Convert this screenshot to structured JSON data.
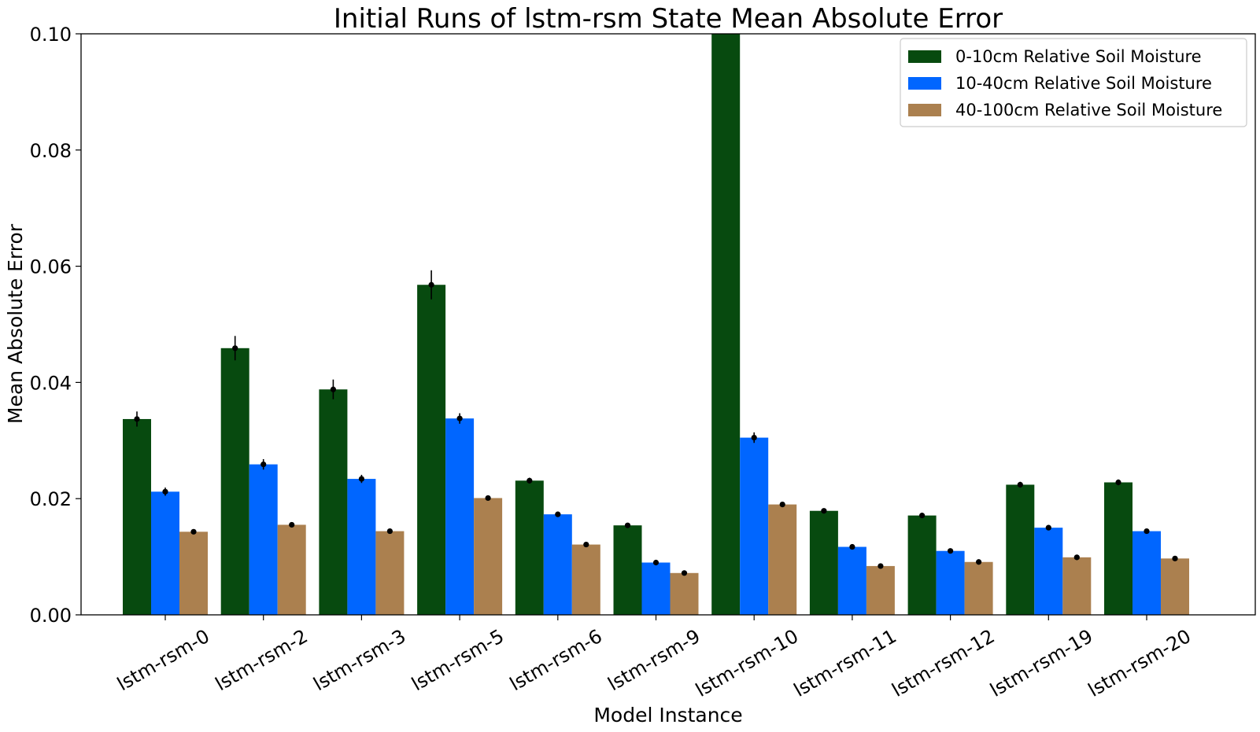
{
  "chart_data": {
    "type": "bar",
    "title": "Initial Runs of lstm-rsm State Mean Absolute Error",
    "xlabel": "Model Instance",
    "ylabel": "Mean Absolute Error",
    "ylim": [
      0,
      0.1
    ],
    "yticks": [
      "0.00",
      "0.02",
      "0.04",
      "0.06",
      "0.08",
      "0.10"
    ],
    "ytick_values": [
      0,
      0.02,
      0.04,
      0.06,
      0.08,
      0.1
    ],
    "grid": false,
    "legend_position": "top-right",
    "categories": [
      "lstm-rsm-0",
      "lstm-rsm-2",
      "lstm-rsm-3",
      "lstm-rsm-5",
      "lstm-rsm-6",
      "lstm-rsm-9",
      "lstm-rsm-10",
      "lstm-rsm-11",
      "lstm-rsm-12",
      "lstm-rsm-19",
      "lstm-rsm-20"
    ],
    "series": [
      {
        "name": "0-10cm Relative Soil Moisture",
        "color": "#074a0f",
        "values": [
          0.0337,
          0.0459,
          0.0388,
          0.0568,
          0.0231,
          0.0154,
          0.1,
          0.0179,
          0.0171,
          0.0224,
          0.0228
        ],
        "errors": [
          0.0013,
          0.0021,
          0.0017,
          0.0025,
          0.0005,
          0.0003,
          0.0,
          0.0003,
          0.0003,
          0.0005,
          0.0005
        ]
      },
      {
        "name": "10-40cm Relative Soil Moisture",
        "color": "#0066ff",
        "values": [
          0.0212,
          0.0259,
          0.0234,
          0.0338,
          0.0173,
          0.009,
          0.0305,
          0.0117,
          0.011,
          0.015,
          0.0144
        ],
        "errors": [
          0.0007,
          0.0009,
          0.0007,
          0.0009,
          0.0003,
          0.0002,
          0.0009,
          0.0002,
          0.0002,
          0.0002,
          0.0002
        ]
      },
      {
        "name": "40-100cm Relative Soil Moisture",
        "color": "#ab804f",
        "values": [
          0.0143,
          0.0155,
          0.0144,
          0.0201,
          0.0121,
          0.0072,
          0.019,
          0.0084,
          0.0091,
          0.0099,
          0.0097
        ],
        "errors": [
          0.0002,
          0.0002,
          0.0002,
          0.0003,
          0.0002,
          0.0001,
          0.0002,
          0.0001,
          0.0001,
          0.0001,
          0.0001
        ]
      }
    ]
  }
}
